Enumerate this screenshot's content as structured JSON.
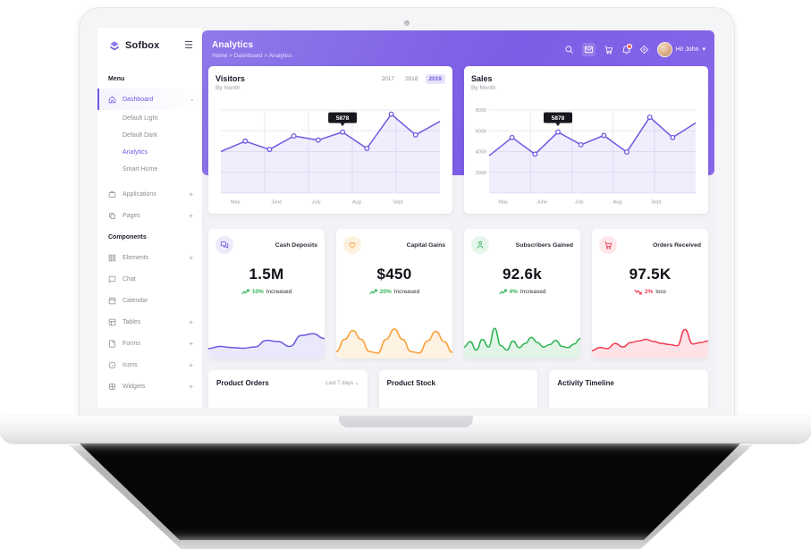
{
  "sidebar": {
    "logo": "Sofbox",
    "menu_header": "Menu",
    "components_header": "Components",
    "dashboard": {
      "label": "Dashboard",
      "toggle": "-"
    },
    "dashboard_children": [
      {
        "label": "Default Light"
      },
      {
        "label": "Default Dark"
      },
      {
        "label": "Analytics"
      },
      {
        "label": "Smart Home"
      }
    ],
    "items": [
      {
        "label": "Applications",
        "toggle": "+"
      },
      {
        "label": "Pages",
        "toggle": "+"
      },
      {
        "label": "Elements",
        "toggle": "+"
      },
      {
        "label": "Chat",
        "toggle": ""
      },
      {
        "label": "Calendar",
        "toggle": ""
      },
      {
        "label": "Tables",
        "toggle": "+"
      },
      {
        "label": "Forms",
        "toggle": "+"
      },
      {
        "label": "Icons",
        "toggle": "+"
      },
      {
        "label": "Widgets",
        "toggle": "+"
      }
    ]
  },
  "header": {
    "title": "Analytics",
    "breadcrumb": "Home > Dashboard > Analytics",
    "user": "Hi! John",
    "icon_names": [
      "search",
      "mail",
      "cart",
      "notifications",
      "locate"
    ]
  },
  "chart_data": [
    {
      "type": "line",
      "title": "Visitors",
      "subtitle": "By month",
      "year_tabs": [
        "2017",
        "2018",
        "2019"
      ],
      "active_year": "2019",
      "x_labels": [
        "May",
        "June",
        "July",
        "Aug",
        "Sept"
      ],
      "values": [
        4000,
        5000,
        4200,
        5500,
        5100,
        5878,
        4300,
        7600,
        5600,
        6900
      ],
      "tooltip": {
        "index": 5,
        "value": "5878"
      },
      "ylim": [
        0,
        8000
      ],
      "y_labels": [],
      "grid": true,
      "line_color": "#6a5ae0",
      "fill_color": "rgba(106,90,224,0.10)"
    },
    {
      "type": "line",
      "title": "Sales",
      "subtitle": "By Month",
      "x_labels": [
        "May",
        "June",
        "July",
        "Aug",
        "Sept"
      ],
      "values": [
        3600,
        5350,
        3750,
        5878,
        4650,
        5550,
        3950,
        7300,
        5350,
        6750
      ],
      "tooltip": {
        "index": 3,
        "value": "5878"
      },
      "ylim": [
        0,
        8000
      ],
      "y_labels": [
        "8000",
        "6000",
        "4000",
        "2000"
      ],
      "grid": true,
      "line_color": "#6a5ae0",
      "fill_color": "rgba(106,90,224,0.10)"
    }
  ],
  "stats": [
    {
      "label": "Cash Deposits",
      "value": "1.5M",
      "trend_pct": "10%",
      "trend_text": "Increased",
      "direction": "up",
      "trend_color": "#2fb355",
      "accent": "#6a5ae0",
      "accent_bg": "#edebfb",
      "icon": "chat",
      "spark": [
        25,
        32,
        28,
        26,
        30,
        52,
        48,
        32,
        68,
        74,
        58
      ]
    },
    {
      "label": "Capital Gains",
      "value": "$450",
      "trend_pct": "20%",
      "trend_text": "Increased",
      "direction": "up",
      "trend_color": "#2fb355",
      "accent": "#f8a03c",
      "accent_bg": "#fdf1e0",
      "icon": "heart",
      "spark": [
        15,
        55,
        85,
        55,
        15,
        10,
        55,
        90,
        55,
        15,
        10,
        50,
        82,
        48,
        12
      ]
    },
    {
      "label": "Subscribers Gained",
      "value": "92.6k",
      "trend_pct": "4%",
      "trend_text": "Increased",
      "direction": "up",
      "trend_color": "#2fb355",
      "accent": "#2fb355",
      "accent_bg": "#e5f6ea",
      "icon": "user",
      "spark": [
        30,
        48,
        20,
        55,
        30,
        92,
        35,
        20,
        50,
        28,
        42,
        62,
        45,
        30,
        38,
        52,
        32,
        28,
        40,
        58
      ]
    },
    {
      "label": "Orders Received",
      "value": "97.5K",
      "trend_pct": "2%",
      "trend_text": "loss",
      "direction": "down",
      "trend_color": "#ee3b53",
      "accent": "#ee3b53",
      "accent_bg": "#fde7ea",
      "icon": "cart",
      "spark": [
        18,
        28,
        25,
        42,
        30,
        45,
        50,
        55,
        48,
        42,
        38,
        34,
        88,
        40,
        45,
        50
      ]
    }
  ],
  "bottom_cards": [
    {
      "title": "Product Orders",
      "filter": "Last 7 days"
    },
    {
      "title": "Product Stock",
      "filter": ""
    },
    {
      "title": "Activity Timeline",
      "filter": ""
    }
  ]
}
